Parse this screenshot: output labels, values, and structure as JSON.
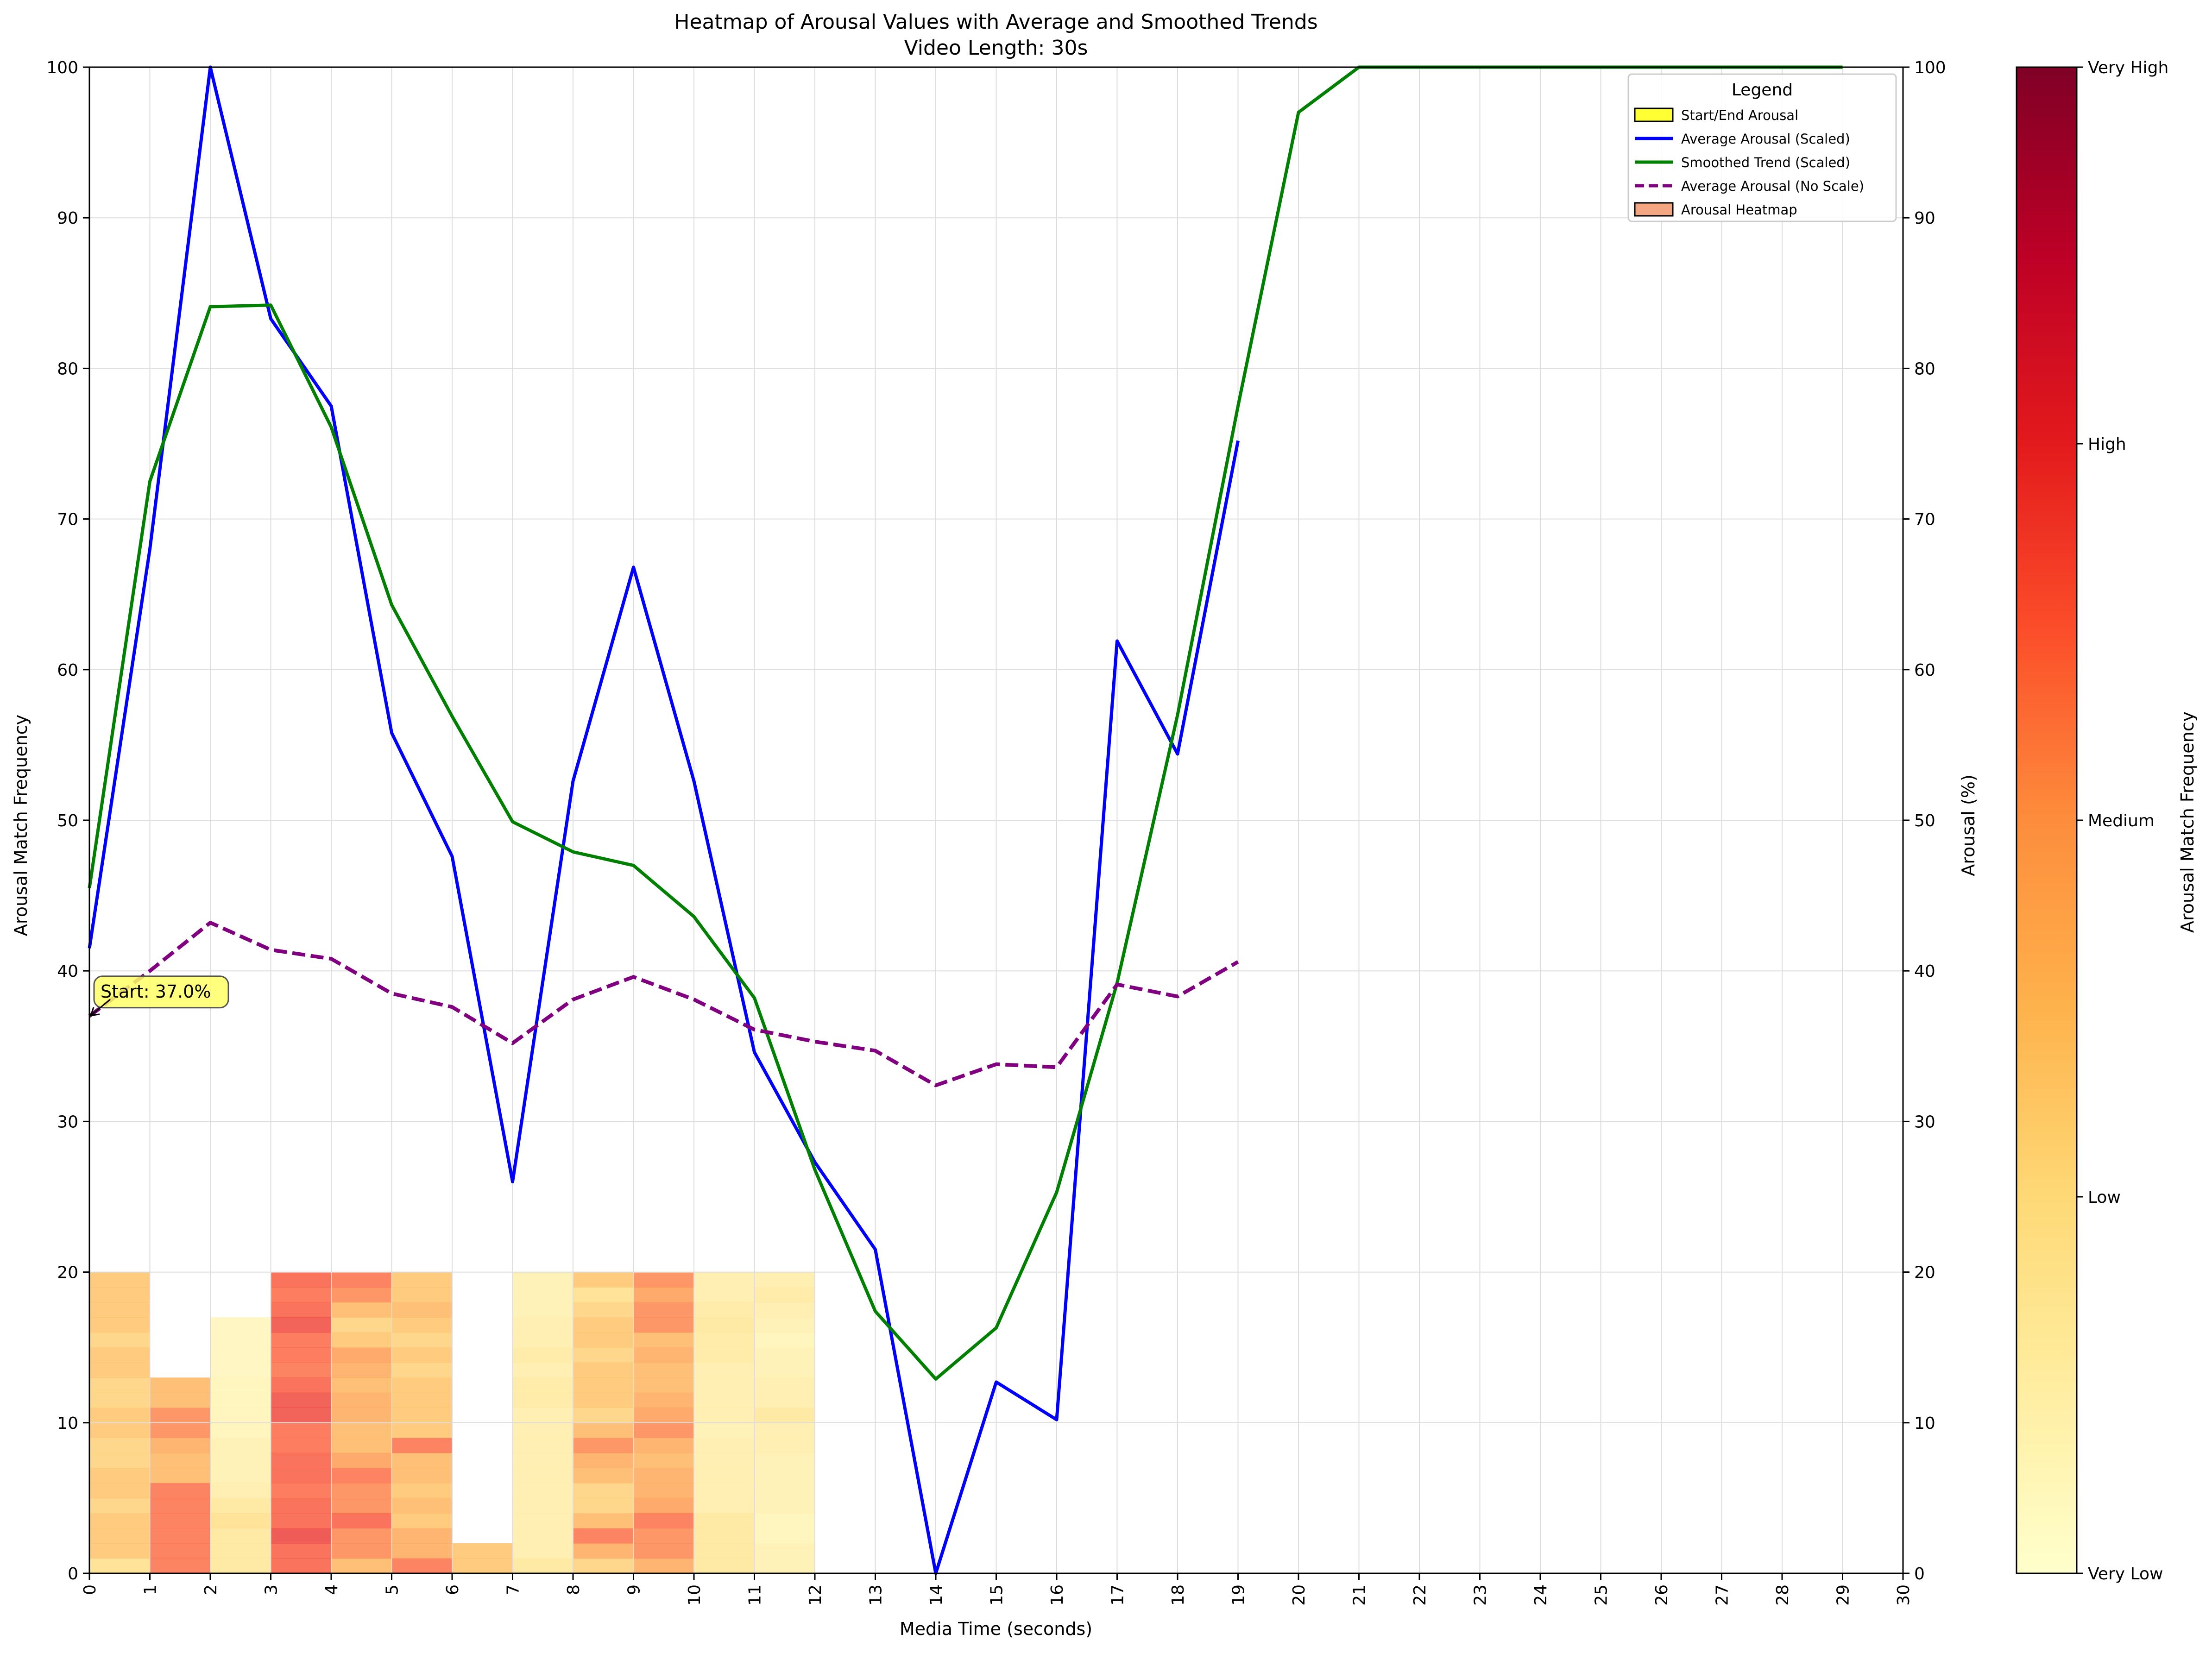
{
  "chart_data": {
    "type": "heatmap",
    "title": "Heatmap of Arousal Values with Average and Smoothed Trends",
    "subtitle": "Video Length: 30s",
    "xlabel": "Media Time (seconds)",
    "ylabel_left": "Arousal Match Frequency",
    "ylabel_right": "Arousal (%)",
    "xlim": [
      0,
      30
    ],
    "ylim": [
      0,
      100
    ],
    "x_ticks": [
      "0",
      "1",
      "2",
      "3",
      "4",
      "5",
      "6",
      "7",
      "8",
      "9",
      "10",
      "11",
      "12",
      "13",
      "14",
      "15",
      "16",
      "17",
      "18",
      "19",
      "20",
      "21",
      "22",
      "23",
      "24",
      "25",
      "26",
      "27",
      "28",
      "29",
      "30"
    ],
    "y_ticks": [
      "0",
      "10",
      "20",
      "30",
      "40",
      "50",
      "60",
      "70",
      "80",
      "90",
      "100"
    ],
    "grid": true,
    "legend": {
      "title": "Legend",
      "placement": "top-right",
      "entries": [
        {
          "label": "Start/End Arousal",
          "kind": "patch",
          "color": "#ffff33"
        },
        {
          "label": "Average Arousal (Scaled)",
          "kind": "line",
          "color": "#0000ff",
          "dash": false
        },
        {
          "label": "Smoothed Trend (Scaled)",
          "kind": "line",
          "color": "#008000",
          "dash": false
        },
        {
          "label": "Average Arousal (No Scale)",
          "kind": "line",
          "color": "#800080",
          "dash": true
        },
        {
          "label": "Arousal Heatmap",
          "kind": "patch",
          "color": "#f4a582"
        }
      ]
    },
    "annotation": {
      "text": "Start: 37.0%",
      "x": 0,
      "y": 37
    },
    "colorbar": {
      "label": "Arousal Match Frequency",
      "tick_labels": [
        "Very Low",
        "Low",
        "Medium",
        "High",
        "Very High"
      ],
      "colormap": "YlOrRd"
    },
    "series": [
      {
        "name": "Average Arousal (Scaled)",
        "color": "#0000ff",
        "x": [
          0,
          1,
          2,
          3,
          4,
          5,
          6,
          7,
          8,
          9,
          10,
          11,
          12,
          13,
          14,
          15,
          16,
          17,
          18,
          19
        ],
        "y": [
          41.5,
          68,
          100,
          83.3,
          77.5,
          55.8,
          47.6,
          26,
          52.6,
          66.8,
          52.6,
          34.6,
          27.3,
          21.5,
          0,
          12.7,
          10.2,
          61.9,
          54.4,
          75.2
        ]
      },
      {
        "name": "Smoothed Trend (Scaled)",
        "color": "#008000",
        "x": [
          0,
          1,
          2,
          3,
          4,
          5,
          6,
          7,
          8,
          9,
          10,
          11,
          12,
          13,
          14,
          15,
          16,
          17,
          18,
          19,
          20,
          21,
          22,
          23,
          24,
          25,
          26,
          27,
          28,
          29
        ],
        "y": [
          45.5,
          72.5,
          84.1,
          84.2,
          76.1,
          64.3,
          56.9,
          49.9,
          47.9,
          47,
          43.6,
          38.2,
          26.8,
          17.4,
          12.9,
          16.3,
          25.3,
          39.2,
          57,
          77.5,
          97,
          100,
          100,
          100,
          100,
          100,
          100,
          100,
          100,
          100
        ]
      },
      {
        "name": "Average Arousal (No Scale)",
        "color": "#800080",
        "x": [
          0,
          1,
          2,
          3,
          4,
          5,
          6,
          7,
          8,
          9,
          10,
          11,
          12,
          13,
          14,
          15,
          16,
          17,
          18,
          19
        ],
        "y": [
          37,
          40,
          43.2,
          41.4,
          40.8,
          38.5,
          37.6,
          35.2,
          38.1,
          39.6,
          38.1,
          36.1,
          35.3,
          34.7,
          32.4,
          33.8,
          33.6,
          39.1,
          38.3,
          40.6
        ]
      }
    ],
    "heatmap_columns": [
      {
        "x": 0,
        "top": 20,
        "levels": [
          0.25,
          0.35,
          0.35,
          0.35,
          0.3,
          0.35,
          0.35,
          0.3,
          0.3,
          0.35,
          0.35,
          0.3,
          0.3,
          0.35,
          0.35,
          0.3,
          0.35,
          0.35,
          0.35,
          0.35
        ]
      },
      {
        "x": 1,
        "top": 13,
        "levels": [
          0.6,
          0.6,
          0.6,
          0.6,
          0.6,
          0.6,
          0.4,
          0.4,
          0.45,
          0.55,
          0.55,
          0.4,
          0.4
        ]
      },
      {
        "x": 2,
        "top": 17,
        "levels": [
          0.2,
          0.2,
          0.2,
          0.25,
          0.2,
          0.15,
          0.12,
          0.12,
          0.12,
          0.1,
          0.1,
          0.1,
          0.1,
          0.08,
          0.08,
          0.08,
          0.08
        ]
      },
      {
        "x": 3,
        "top": 20,
        "levels": [
          0.65,
          0.65,
          0.72,
          0.65,
          0.65,
          0.62,
          0.65,
          0.65,
          0.62,
          0.62,
          0.7,
          0.7,
          0.65,
          0.6,
          0.62,
          0.62,
          0.7,
          0.65,
          0.62,
          0.65
        ]
      },
      {
        "x": 4,
        "top": 20,
        "levels": [
          0.4,
          0.55,
          0.55,
          0.65,
          0.55,
          0.55,
          0.6,
          0.5,
          0.4,
          0.4,
          0.45,
          0.45,
          0.4,
          0.45,
          0.5,
          0.35,
          0.3,
          0.4,
          0.55,
          0.6
        ]
      },
      {
        "x": 5,
        "top": 20,
        "levels": [
          0.6,
          0.45,
          0.45,
          0.35,
          0.4,
          0.35,
          0.4,
          0.4,
          0.6,
          0.35,
          0.35,
          0.35,
          0.35,
          0.3,
          0.35,
          0.3,
          0.35,
          0.4,
          0.35,
          0.35
        ]
      },
      {
        "x": 6,
        "top": 2,
        "levels": [
          0.35,
          0.35
        ]
      },
      {
        "x": 7,
        "top": 20,
        "levels": [
          0.2,
          0.15,
          0.15,
          0.15,
          0.15,
          0.15,
          0.15,
          0.15,
          0.15,
          0.15,
          0.15,
          0.18,
          0.18,
          0.15,
          0.18,
          0.15,
          0.15,
          0.12,
          0.12,
          0.12
        ]
      },
      {
        "x": 8,
        "top": 20,
        "levels": [
          0.3,
          0.45,
          0.6,
          0.4,
          0.3,
          0.3,
          0.4,
          0.45,
          0.55,
          0.4,
          0.3,
          0.35,
          0.35,
          0.35,
          0.3,
          0.35,
          0.35,
          0.3,
          0.25,
          0.35
        ]
      },
      {
        "x": 9,
        "top": 20,
        "levels": [
          0.45,
          0.55,
          0.55,
          0.6,
          0.5,
          0.45,
          0.45,
          0.4,
          0.45,
          0.55,
          0.5,
          0.45,
          0.4,
          0.4,
          0.45,
          0.4,
          0.55,
          0.55,
          0.5,
          0.55
        ]
      },
      {
        "x": 10,
        "top": 20,
        "levels": [
          0.2,
          0.2,
          0.2,
          0.2,
          0.15,
          0.15,
          0.15,
          0.15,
          0.15,
          0.12,
          0.15,
          0.15,
          0.15,
          0.15,
          0.18,
          0.18,
          0.2,
          0.18,
          0.15,
          0.15
        ]
      },
      {
        "x": 11,
        "top": 20,
        "levels": [
          0.12,
          0.12,
          0.1,
          0.1,
          0.12,
          0.12,
          0.12,
          0.12,
          0.15,
          0.15,
          0.2,
          0.15,
          0.15,
          0.12,
          0.12,
          0.1,
          0.12,
          0.15,
          0.18,
          0.15
        ]
      }
    ]
  }
}
